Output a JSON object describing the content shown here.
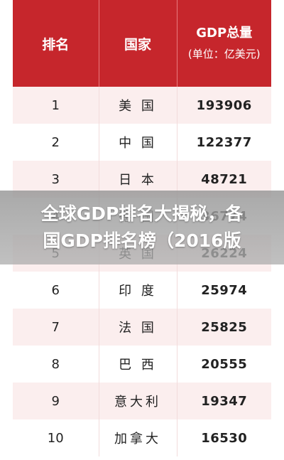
{
  "table": {
    "header": {
      "rank": "排名",
      "country": "国家",
      "gdp_title": "GDP总量",
      "gdp_unit": "(单位：亿美元)"
    },
    "rows": [
      {
        "rank": "1",
        "country": "美 国",
        "gdp": "193906"
      },
      {
        "rank": "2",
        "country": "中 国",
        "gdp": "122377"
      },
      {
        "rank": "3",
        "country": "日 本",
        "gdp": "48721"
      },
      {
        "rank": "4",
        "country": "德 国",
        "gdp": "36774"
      },
      {
        "rank": "5",
        "country": "英 国",
        "gdp": "26224"
      },
      {
        "rank": "6",
        "country": "印 度",
        "gdp": "25974"
      },
      {
        "rank": "7",
        "country": "法 国",
        "gdp": "25825"
      },
      {
        "rank": "8",
        "country": "巴 西",
        "gdp": "20555"
      },
      {
        "rank": "9",
        "country": "意大利",
        "gdp": "19347"
      },
      {
        "rank": "10",
        "country": "加拿大",
        "gdp": "16530"
      }
    ]
  },
  "caption": {
    "line1": "全球GDP排名大揭秘，各",
    "line2": "国GDP排名榜（2016版"
  },
  "colors": {
    "header_bg": "#c6262c",
    "stripe_bg": "#fbeeee"
  }
}
